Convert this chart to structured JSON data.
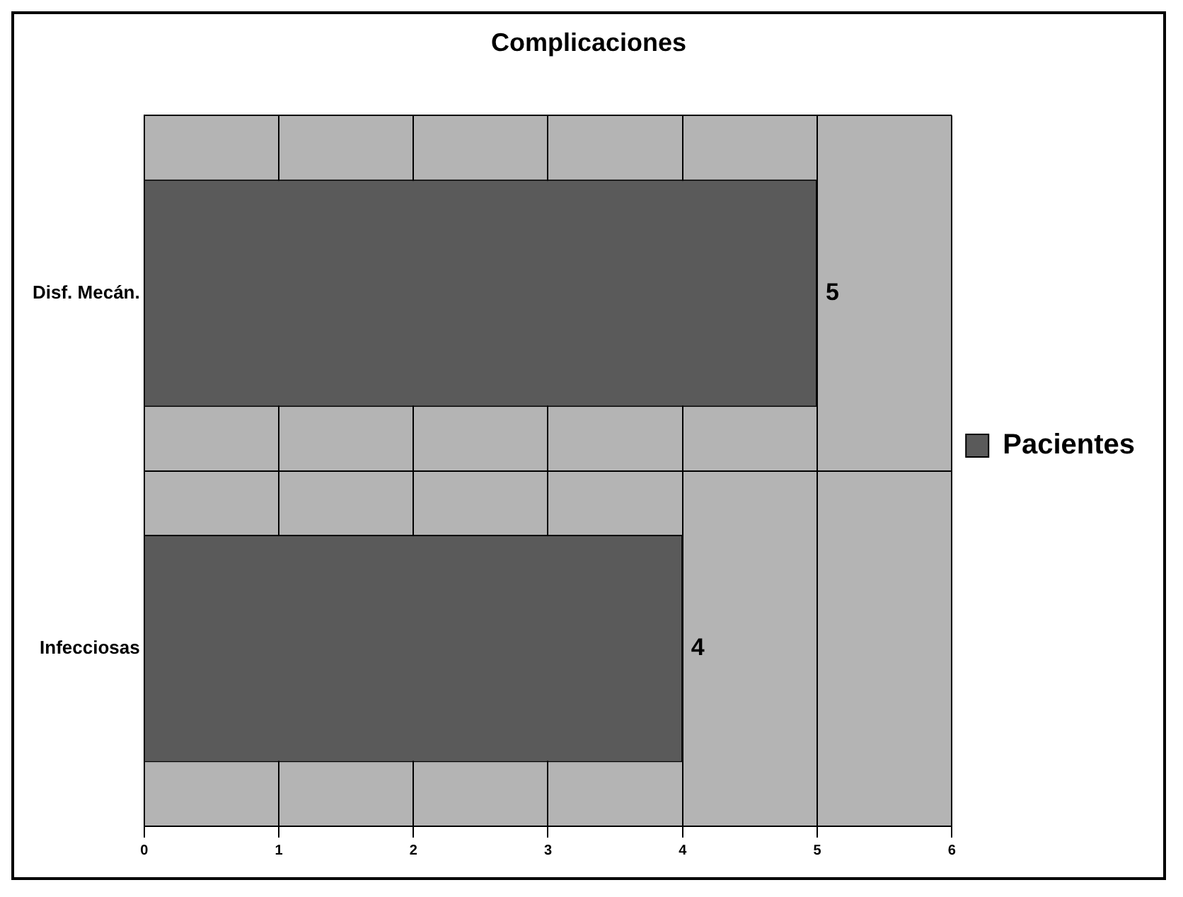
{
  "chart_data": {
    "type": "bar",
    "orientation": "horizontal",
    "title": "Complicaciones",
    "categories": [
      "Disf. Mecán.",
      "Infecciosas"
    ],
    "series": [
      {
        "name": "Pacientes",
        "color": "#5a5a5a",
        "values": [
          5,
          4
        ]
      }
    ],
    "xlim": [
      0,
      6
    ],
    "xticks": [
      0,
      1,
      2,
      3,
      4,
      5,
      6
    ],
    "grid": true,
    "legend": "right",
    "data_labels": true
  }
}
